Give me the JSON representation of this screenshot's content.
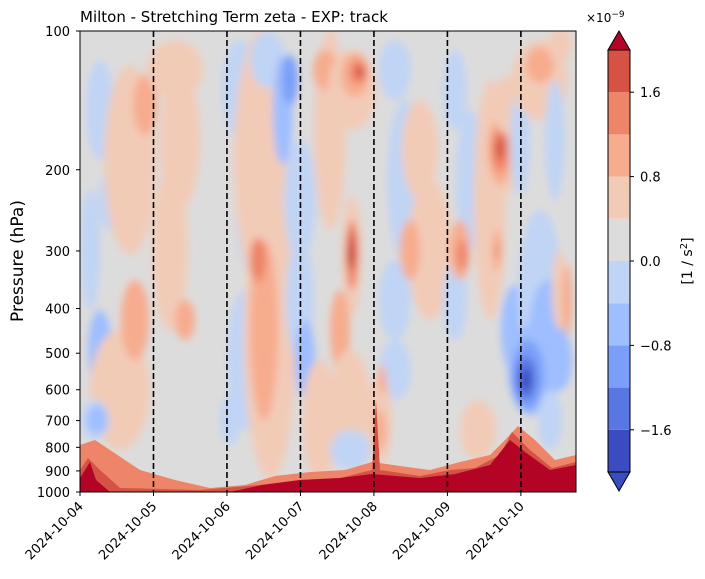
{
  "chart_data": {
    "type": "heatmap",
    "title": "Milton - Stretching Term zeta - EXP: track",
    "ylabel": "Pressure (hPa)",
    "xlabel": "",
    "y_scale": "log",
    "y_inverted": true,
    "ylim": [
      1000,
      100
    ],
    "y_ticks": [
      100,
      200,
      300,
      400,
      500,
      600,
      700,
      800,
      900,
      1000
    ],
    "x_ticks": [
      "2024-10-04",
      "2024-10-05",
      "2024-10-06",
      "2024-10-07",
      "2024-10-08",
      "2024-10-09",
      "2024-10-10"
    ],
    "xlim": [
      "2024-10-04",
      "2024-10-10T18:00"
    ],
    "vertical_lines": [
      "2024-10-05",
      "2024-10-06",
      "2024-10-07",
      "2024-10-08",
      "2024-10-09",
      "2024-10-10"
    ],
    "vertical_line_style": "dashed",
    "colormap": "coolwarm",
    "colorbar": {
      "label": "[1 / s²]",
      "label_base": "[1 / s",
      "label_sup": "2",
      "label_end": "]",
      "scale_label": "×10⁻⁹",
      "scale_base": "×10",
      "scale_sup": "−9",
      "extend": "both",
      "levels": [
        -2.0,
        -1.6,
        -1.2,
        -0.8,
        -0.4,
        0.0,
        0.4,
        0.8,
        1.2,
        1.6,
        2.0
      ],
      "tick_values": [
        -1.6,
        -0.8,
        0.0,
        0.8,
        1.6
      ],
      "tick_labels": [
        "−1.6",
        "−0.8",
        "0.0",
        "0.8",
        "1.6"
      ],
      "colors": [
        "#3b4cc0",
        "#5977e3",
        "#7b9ff9",
        "#9ebeff",
        "#c0d4f5",
        "#dddcdc",
        "#f2cbb7",
        "#f7ac8e",
        "#ee8468",
        "#d65244",
        "#b40426"
      ],
      "under_color": "#3b4cc0",
      "over_color": "#b40426"
    },
    "grid": false
  }
}
